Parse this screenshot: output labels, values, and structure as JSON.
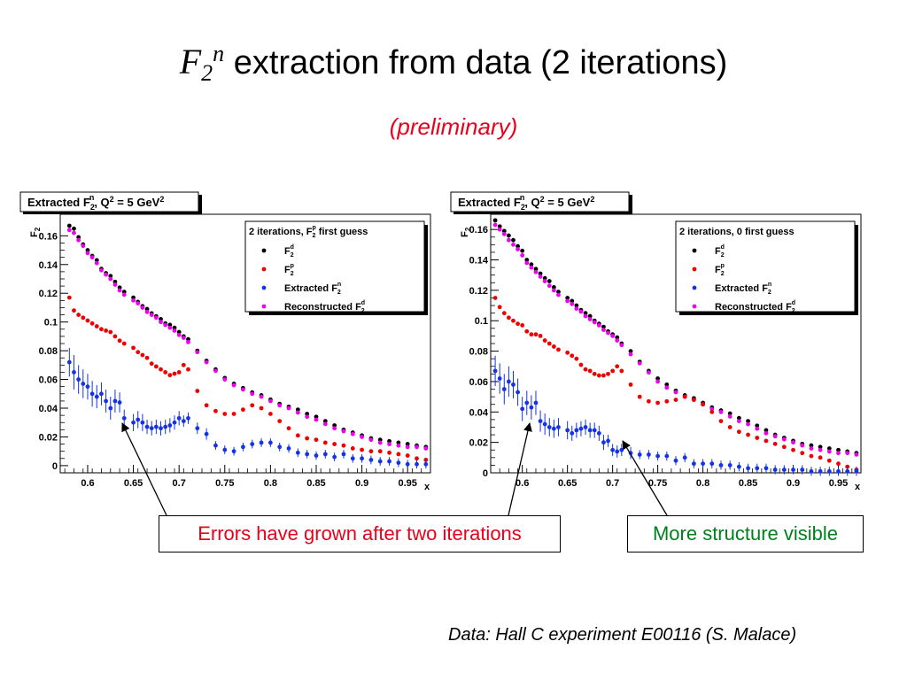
{
  "slide": {
    "title_symbol": "F",
    "title_sub": "2",
    "title_sup": "n",
    "title_rest": " extraction from data (2 iterations)",
    "subtitle": "(preliminary)",
    "callout_left": "Errors have grown after two iterations",
    "callout_right": "More structure visible",
    "footnote": "Data: Hall C experiment E00116 (S. Malace)"
  },
  "colors": {
    "f2d": "#000000",
    "f2p": "#ee0000",
    "f2n": "#1433e8",
    "recon": "#ee00ee",
    "callout_left_text": "#e8001c",
    "callout_right_text": "#00801c",
    "subtitle_text": "#e8001c"
  },
  "chart_data": [
    {
      "type": "scatter",
      "title": "Extracted F2n, Q2 = 5 GeV2",
      "title_parts": {
        "a": "Extracted F",
        "a_sub": "2",
        "a_sup": "n",
        "b": ", Q",
        "b_sup": "2",
        "c": " = 5 GeV",
        "c_sup": "2"
      },
      "xlabel": "x",
      "ylabel": "F2",
      "ylabel_parts": {
        "main": "F",
        "sub": "2"
      },
      "xlim": [
        0.57,
        0.975
      ],
      "ylim": [
        -0.005,
        0.175
      ],
      "xticks": [
        0.6,
        0.65,
        0.7,
        0.75,
        0.8,
        0.85,
        0.9,
        0.95
      ],
      "yticks": [
        0,
        0.02,
        0.04,
        0.06,
        0.08,
        0.1,
        0.12,
        0.14,
        0.16
      ],
      "grid": false,
      "legend": {
        "placement": "top-right",
        "header": "2 iterations, F",
        "header_sub": "2",
        "header_sup": "p",
        "header_tail": " first guess",
        "entries": [
          {
            "main": "F",
            "sub": "2",
            "sup": "d",
            "series": "f2d"
          },
          {
            "main": " F",
            "sub": "2",
            "sup": "p",
            "series": "f2p"
          },
          {
            "main": "Extracted F",
            "sub": "2",
            "sup": "n",
            "series": "f2n"
          },
          {
            "main": "Reconstructed F",
            "sub": "2",
            "sup": "d",
            "series": "recon"
          }
        ]
      },
      "x": [
        0.58,
        0.585,
        0.59,
        0.595,
        0.6,
        0.605,
        0.61,
        0.615,
        0.62,
        0.625,
        0.63,
        0.635,
        0.64,
        0.65,
        0.655,
        0.66,
        0.665,
        0.67,
        0.675,
        0.68,
        0.685,
        0.69,
        0.695,
        0.7,
        0.705,
        0.71,
        0.72,
        0.73,
        0.74,
        0.75,
        0.76,
        0.77,
        0.78,
        0.79,
        0.8,
        0.81,
        0.82,
        0.83,
        0.84,
        0.85,
        0.86,
        0.87,
        0.88,
        0.89,
        0.9,
        0.91,
        0.92,
        0.93,
        0.94,
        0.95,
        0.96,
        0.97
      ],
      "series": [
        {
          "key": "f2d",
          "values": [
            0.167,
            0.165,
            0.159,
            0.154,
            0.15,
            0.146,
            0.143,
            0.137,
            0.134,
            0.132,
            0.128,
            0.124,
            0.121,
            0.117,
            0.114,
            0.111,
            0.109,
            0.106,
            0.104,
            0.102,
            0.099,
            0.098,
            0.096,
            0.093,
            0.09,
            0.088,
            0.08,
            0.073,
            0.067,
            0.061,
            0.057,
            0.054,
            0.051,
            0.049,
            0.046,
            0.043,
            0.041,
            0.039,
            0.036,
            0.034,
            0.031,
            0.028,
            0.025,
            0.023,
            0.021,
            0.019,
            0.018,
            0.017,
            0.016,
            0.015,
            0.014,
            0.013
          ]
        },
        {
          "key": "recon",
          "values": [
            0.164,
            0.162,
            0.157,
            0.153,
            0.148,
            0.145,
            0.141,
            0.136,
            0.133,
            0.13,
            0.126,
            0.122,
            0.119,
            0.115,
            0.113,
            0.11,
            0.107,
            0.105,
            0.103,
            0.1,
            0.098,
            0.096,
            0.094,
            0.091,
            0.089,
            0.086,
            0.079,
            0.072,
            0.066,
            0.06,
            0.056,
            0.053,
            0.05,
            0.048,
            0.045,
            0.042,
            0.04,
            0.037,
            0.034,
            0.032,
            0.029,
            0.026,
            0.024,
            0.022,
            0.02,
            0.018,
            0.016,
            0.015,
            0.014,
            0.013,
            0.013,
            0.012
          ]
        },
        {
          "key": "f2p",
          "values": [
            0.117,
            0.108,
            0.105,
            0.103,
            0.101,
            0.099,
            0.097,
            0.095,
            0.094,
            0.093,
            0.09,
            0.087,
            0.085,
            0.082,
            0.079,
            0.077,
            0.075,
            0.071,
            0.069,
            0.067,
            0.065,
            0.063,
            0.064,
            0.065,
            0.07,
            0.067,
            0.052,
            0.042,
            0.038,
            0.036,
            0.036,
            0.039,
            0.042,
            0.04,
            0.036,
            0.031,
            0.026,
            0.021,
            0.019,
            0.018,
            0.016,
            0.015,
            0.014,
            0.012,
            0.011,
            0.01,
            0.01,
            0.009,
            0.008,
            0.007,
            0.005,
            0.004
          ]
        },
        {
          "key": "f2n",
          "values": [
            0.072,
            0.065,
            0.06,
            0.057,
            0.055,
            0.05,
            0.048,
            0.05,
            0.045,
            0.04,
            0.045,
            0.044,
            0.033,
            0.03,
            0.032,
            0.03,
            0.027,
            0.026,
            0.027,
            0.026,
            0.027,
            0.028,
            0.03,
            0.033,
            0.031,
            0.033,
            0.026,
            0.022,
            0.014,
            0.011,
            0.01,
            0.013,
            0.015,
            0.016,
            0.016,
            0.013,
            0.012,
            0.009,
            0.008,
            0.007,
            0.008,
            0.006,
            0.008,
            0.005,
            0.005,
            0.004,
            0.003,
            0.003,
            0.002,
            0.001,
            0.001,
            0.001
          ],
          "errors": [
            0.01,
            0.012,
            0.01,
            0.01,
            0.009,
            0.009,
            0.008,
            0.008,
            0.008,
            0.008,
            0.008,
            0.007,
            0.006,
            0.006,
            0.006,
            0.006,
            0.005,
            0.005,
            0.005,
            0.005,
            0.005,
            0.005,
            0.005,
            0.005,
            0.004,
            0.004,
            0.004,
            0.004,
            0.003,
            0.003,
            0.003,
            0.003,
            0.003,
            0.003,
            0.003,
            0.003,
            0.003,
            0.003,
            0.003,
            0.003,
            0.003,
            0.003,
            0.003,
            0.003,
            0.003,
            0.003,
            0.003,
            0.003,
            0.003,
            0.003,
            0.003,
            0.003
          ]
        }
      ]
    },
    {
      "type": "scatter",
      "title": "Extracted F2n, Q2 = 5 GeV2",
      "title_parts": {
        "a": "Extracted F",
        "a_sub": "2",
        "a_sup": "n",
        "b": ", Q",
        "b_sup": "2",
        "c": " = 5 GeV",
        "c_sup": "2"
      },
      "xlabel": "x",
      "ylabel": "F2",
      "ylabel_parts": {
        "main": "F",
        "sub": "2"
      },
      "xlim": [
        0.565,
        0.975
      ],
      "ylim": [
        0,
        0.17
      ],
      "xticks": [
        0.6,
        0.65,
        0.7,
        0.75,
        0.8,
        0.85,
        0.9,
        0.95
      ],
      "yticks": [
        0,
        0.02,
        0.04,
        0.06,
        0.08,
        0.1,
        0.12,
        0.14,
        0.16
      ],
      "grid": false,
      "legend": {
        "placement": "top-right",
        "header": "2 iterations, 0 first guess",
        "header_sub": "",
        "header_sup": "",
        "header_tail": "",
        "entries": [
          {
            "main": "F",
            "sub": "2",
            "sup": "d",
            "series": "f2d"
          },
          {
            "main": " F",
            "sub": "2",
            "sup": "p",
            "series": "f2p"
          },
          {
            "main": "Extracted F",
            "sub": "2",
            "sup": "n",
            "series": "f2n"
          },
          {
            "main": "Reconstructed F",
            "sub": "2",
            "sup": "d",
            "series": "recon"
          }
        ]
      },
      "x": [
        0.57,
        0.575,
        0.58,
        0.585,
        0.59,
        0.595,
        0.6,
        0.605,
        0.61,
        0.615,
        0.62,
        0.625,
        0.63,
        0.635,
        0.64,
        0.65,
        0.655,
        0.66,
        0.665,
        0.67,
        0.675,
        0.68,
        0.685,
        0.69,
        0.695,
        0.7,
        0.705,
        0.71,
        0.72,
        0.73,
        0.74,
        0.75,
        0.76,
        0.77,
        0.78,
        0.79,
        0.8,
        0.81,
        0.82,
        0.83,
        0.84,
        0.85,
        0.86,
        0.87,
        0.88,
        0.89,
        0.9,
        0.91,
        0.92,
        0.93,
        0.94,
        0.95,
        0.96,
        0.97
      ],
      "series": [
        {
          "key": "f2d",
          "values": [
            0.166,
            0.162,
            0.159,
            0.156,
            0.153,
            0.149,
            0.146,
            0.14,
            0.137,
            0.134,
            0.131,
            0.128,
            0.126,
            0.122,
            0.119,
            0.115,
            0.113,
            0.11,
            0.107,
            0.105,
            0.103,
            0.1,
            0.098,
            0.096,
            0.093,
            0.091,
            0.089,
            0.085,
            0.08,
            0.073,
            0.067,
            0.062,
            0.058,
            0.054,
            0.051,
            0.049,
            0.046,
            0.043,
            0.041,
            0.039,
            0.036,
            0.034,
            0.031,
            0.028,
            0.025,
            0.023,
            0.021,
            0.019,
            0.018,
            0.017,
            0.016,
            0.015,
            0.014,
            0.013
          ]
        },
        {
          "key": "recon",
          "values": [
            0.163,
            0.16,
            0.157,
            0.153,
            0.15,
            0.147,
            0.143,
            0.138,
            0.135,
            0.132,
            0.129,
            0.126,
            0.123,
            0.12,
            0.117,
            0.113,
            0.111,
            0.108,
            0.106,
            0.103,
            0.101,
            0.099,
            0.097,
            0.094,
            0.092,
            0.09,
            0.087,
            0.084,
            0.078,
            0.072,
            0.066,
            0.06,
            0.056,
            0.053,
            0.05,
            0.048,
            0.045,
            0.042,
            0.04,
            0.037,
            0.034,
            0.032,
            0.029,
            0.026,
            0.024,
            0.022,
            0.02,
            0.018,
            0.016,
            0.015,
            0.014,
            0.013,
            0.013,
            0.012
          ]
        },
        {
          "key": "f2p",
          "values": [
            0.115,
            0.109,
            0.105,
            0.102,
            0.1,
            0.098,
            0.097,
            0.093,
            0.091,
            0.091,
            0.09,
            0.087,
            0.085,
            0.083,
            0.081,
            0.079,
            0.077,
            0.075,
            0.071,
            0.068,
            0.067,
            0.065,
            0.064,
            0.064,
            0.065,
            0.067,
            0.07,
            0.067,
            0.058,
            0.05,
            0.047,
            0.046,
            0.047,
            0.048,
            0.05,
            0.048,
            0.045,
            0.04,
            0.034,
            0.03,
            0.027,
            0.025,
            0.023,
            0.021,
            0.019,
            0.017,
            0.015,
            0.013,
            0.011,
            0.01,
            0.008,
            0.006,
            0.004,
            0.002
          ]
        },
        {
          "key": "f2n",
          "values": [
            0.067,
            0.062,
            0.055,
            0.06,
            0.058,
            0.053,
            0.042,
            0.046,
            0.043,
            0.046,
            0.034,
            0.032,
            0.03,
            0.029,
            0.03,
            0.028,
            0.026,
            0.028,
            0.029,
            0.03,
            0.028,
            0.028,
            0.026,
            0.02,
            0.021,
            0.015,
            0.014,
            0.015,
            0.013,
            0.012,
            0.012,
            0.011,
            0.011,
            0.008,
            0.01,
            0.006,
            0.006,
            0.006,
            0.005,
            0.005,
            0.004,
            0.003,
            0.003,
            0.003,
            0.002,
            0.002,
            0.002,
            0.002,
            0.001,
            0.001,
            0.001,
            0.001,
            0.001,
            0.001
          ],
          "errors": [
            0.01,
            0.01,
            0.01,
            0.01,
            0.009,
            0.009,
            0.008,
            0.008,
            0.008,
            0.008,
            0.007,
            0.007,
            0.006,
            0.006,
            0.006,
            0.006,
            0.005,
            0.005,
            0.005,
            0.005,
            0.005,
            0.005,
            0.005,
            0.005,
            0.004,
            0.004,
            0.004,
            0.004,
            0.004,
            0.003,
            0.003,
            0.003,
            0.003,
            0.003,
            0.003,
            0.003,
            0.003,
            0.003,
            0.003,
            0.003,
            0.003,
            0.003,
            0.003,
            0.003,
            0.003,
            0.003,
            0.003,
            0.003,
            0.003,
            0.003,
            0.003,
            0.003,
            0.003,
            0.003
          ]
        }
      ]
    }
  ]
}
